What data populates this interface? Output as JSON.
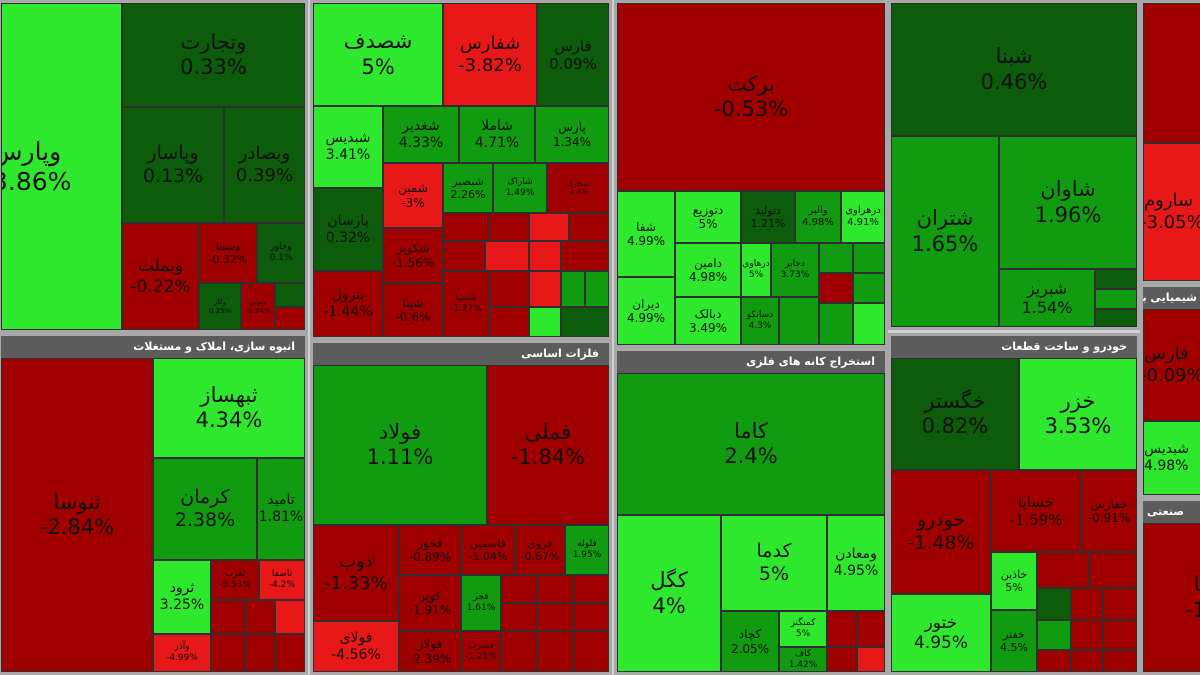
{
  "sectors": {
    "s1": {
      "header": ""
    },
    "s2": {
      "header": ""
    },
    "s3": {
      "header": ""
    },
    "s4": {
      "header": ""
    },
    "s5": {
      "header": ""
    },
    "s6": {
      "header": "انبوه سازی، املاک و مستغلات"
    },
    "s7": {
      "header": "فلزات اساسی"
    },
    "s8": {
      "header": "استخراج کانه های فلزی"
    },
    "s9": {
      "header": "خودرو و ساخت قطعات"
    },
    "s10": {
      "header": "شیمیایی به جز"
    },
    "s11": {
      "header": "صنعتی"
    }
  },
  "tiles": {
    "vpars": {
      "name": "وپارس",
      "pct": "3.86%"
    },
    "vtejarat": {
      "name": "وتجارت",
      "pct": "0.33%"
    },
    "vbsadr": {
      "name": "وبصادر",
      "pct": "0.39%"
    },
    "vpasar": {
      "name": "وپاسار",
      "pct": "0.13%"
    },
    "vmellat": {
      "name": "وبملت",
      "pct": "-0.22%"
    },
    "vsina": {
      "name": "وسینا",
      "pct": "-0.32%"
    },
    "vkhavar": {
      "name": "وخاور",
      "pct": "0.1%"
    },
    "small_a": {
      "name": "وکار",
      "pct": "0.25%"
    },
    "small_b": {
      "name": "ونوین",
      "pct": "-0.24%"
    },
    "shasdaf": {
      "name": "شصدف",
      "pct": "5%"
    },
    "shafars": {
      "name": "شفارس",
      "pct": "-3.82%"
    },
    "fars": {
      "name": "فارس",
      "pct": "0.09%"
    },
    "shebandis": {
      "name": "شبدیس",
      "pct": "3.41%"
    },
    "shaghadir": {
      "name": "شغدیر",
      "pct": "4.33%"
    },
    "shafla": {
      "name": "شاملا",
      "pct": "4.71%"
    },
    "parsan2": {
      "name": "پارس",
      "pct": "1.34%"
    },
    "parsan": {
      "name": "پارسان",
      "pct": "0.32%"
    },
    "shebsir": {
      "name": "شبصیر",
      "pct": "2.26%"
    },
    "shrak": {
      "name": "شاراک",
      "pct": "1.49%"
    },
    "shekheyz": {
      "name": "شخارک",
      "pct": "-1.4%"
    },
    "shmin": {
      "name": "شمین",
      "pct": "-3%"
    },
    "shkavir": {
      "name": "شکویر",
      "pct": "-1.56%"
    },
    "pbrom": {
      "name": "پترول",
      "pct": "-1.44%"
    },
    "shpna": {
      "name": "شپنا",
      "pct": "-0.6%"
    },
    "shsp": {
      "name": "شسپا",
      "pct": "-1.27%"
    },
    "barkat": {
      "name": "برکت",
      "pct": "-0.53%"
    },
    "shefa": {
      "name": "شفا",
      "pct": "4.99%"
    },
    "dtozi": {
      "name": "دتوزیع",
      "pct": "5%"
    },
    "dtolid": {
      "name": "دتولید",
      "pct": "1.21%"
    },
    "valbr": {
      "name": "والبر",
      "pct": "4.98%"
    },
    "dzhravi": {
      "name": "دزهراوی",
      "pct": "4.91%"
    },
    "damin": {
      "name": "دامین",
      "pct": "4.98%"
    },
    "darvo": {
      "name": "درهاوی",
      "pct": "5%"
    },
    "dejaber": {
      "name": "دجابر",
      "pct": "3.73%"
    },
    "dran": {
      "name": "دیران",
      "pct": "4.99%"
    },
    "dalak": {
      "name": "دبالک",
      "pct": "3.49%"
    },
    "dosanko": {
      "name": "دسانکو",
      "pct": "4.3%"
    },
    "shina": {
      "name": "شبنا",
      "pct": "0.46%"
    },
    "shtran": {
      "name": "شتران",
      "pct": "1.65%"
    },
    "shavan": {
      "name": "شاوان",
      "pct": "1.96%"
    },
    "shbriz": {
      "name": "شبریز",
      "pct": "1.54%"
    },
    "sarum": {
      "name": "ساروم",
      "pct": "-3.05%"
    },
    "thbsaz": {
      "name": "ثبهساز",
      "pct": "4.34%"
    },
    "thusa": {
      "name": "ثنوسا",
      "pct": "-2.84%"
    },
    "kerman": {
      "name": "کرمان",
      "pct": "2.38%"
    },
    "tamid": {
      "name": "تامید",
      "pct": "1.81%"
    },
    "trud": {
      "name": "ثرود",
      "pct": "3.25%"
    },
    "thgharb": {
      "name": "ثغرب",
      "pct": "-5.53%"
    },
    "thesfa": {
      "name": "ثاصفا",
      "pct": "-4.2%"
    },
    "vajer": {
      "name": "وآذر",
      "pct": "-4.99%"
    },
    "folad": {
      "name": "فولاد",
      "pct": "1.11%"
    },
    "fameli": {
      "name": "فملی",
      "pct": "-1.84%"
    },
    "dob": {
      "name": "ذوب",
      "pct": "-1.33%"
    },
    "fakhoz": {
      "name": "فخوز",
      "pct": "-0.89%"
    },
    "fasmin": {
      "name": "فاسمین",
      "pct": "-1.04%"
    },
    "fravr": {
      "name": "فروی",
      "pct": "-0.67%"
    },
    "flua": {
      "name": "فلوله",
      "pct": "1.95%"
    },
    "kvir": {
      "name": "کویر",
      "pct": "-1.91%"
    },
    "fjr": {
      "name": "فجر",
      "pct": "1.61%"
    },
    "fulai": {
      "name": "فولای",
      "pct": "-4.56%"
    },
    "fulazh": {
      "name": "فولاژ",
      "pct": "-2.39%"
    },
    "fsolb": {
      "name": "فسرب",
      "pct": "-1.21%"
    },
    "kama": {
      "name": "کاما",
      "pct": "2.4%"
    },
    "kgol": {
      "name": "کگل",
      "pct": "4%"
    },
    "kdma": {
      "name": "کدما",
      "pct": "5%"
    },
    "vmadn": {
      "name": "ومعادن",
      "pct": "4.95%"
    },
    "kchad": {
      "name": "کچاد",
      "pct": "2.05%"
    },
    "kmgn": {
      "name": "کمنگنز",
      "pct": "5%"
    },
    "kbaf": {
      "name": "کاف",
      "pct": "1.42%"
    },
    "khgstr": {
      "name": "خگستر",
      "pct": "0.82%"
    },
    "khzr": {
      "name": "خزر",
      "pct": "3.53%"
    },
    "khodro": {
      "name": "خودرو",
      "pct": "-1.48%"
    },
    "khsapa": {
      "name": "خساپا",
      "pct": "-1.59%"
    },
    "khfars": {
      "name": "خفارس",
      "pct": "-0.91%"
    },
    "khaver": {
      "name": "خاذین",
      "pct": "5%"
    },
    "khnur": {
      "name": "ختور",
      "pct": "4.95%"
    },
    "khfnr": {
      "name": "خفنر",
      "pct": "4.5%"
    },
    "ghfars": {
      "name": "فارس",
      "pct": "-0.09%"
    },
    "shbdis2": {
      "name": "شبدیس",
      "pct": "4.98%"
    },
    "sanati": {
      "name": "تا",
      "pct": "-1"
    }
  }
}
